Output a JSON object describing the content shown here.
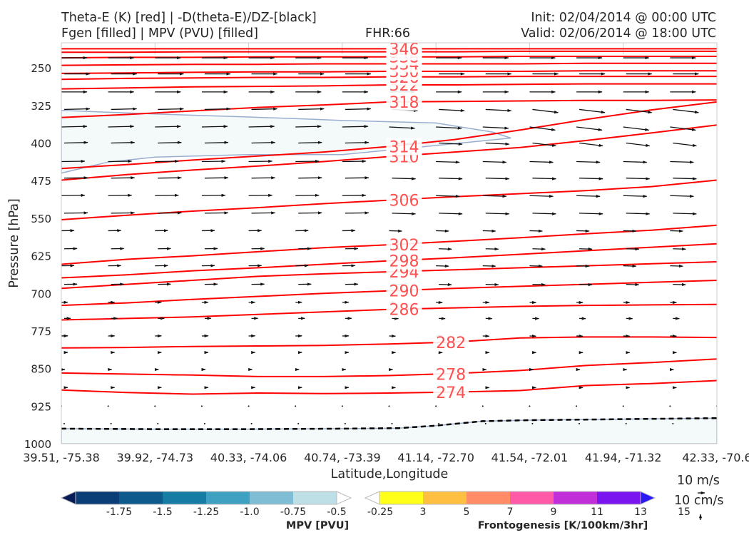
{
  "header": {
    "title_line1": "Theta-E (K) [red] | -D(theta-E)/DZ-[black]",
    "title_line2": "Fgen [filled] | MPV (PVU) [filled]",
    "fhr": "FHR:66",
    "init": "Init: 02/04/2014 @ 00:00 UTC",
    "valid": "Valid: 02/06/2014 @ 18:00 UTC"
  },
  "colors": {
    "theta_e": "#ff0000",
    "theta_e_label": "#ff5050",
    "wind": "#111111",
    "mpv_fill": "#f4f9fa",
    "mpv_edge": "#9aaed0",
    "ground": "#000000"
  },
  "chart_data": {
    "type": "line",
    "xlabel": "Latitude,Longitude",
    "ylabel": "Pressure [hPa]",
    "x_ticks": [
      "39.51, -75.38",
      "39.92, -74.73",
      "40.33, -74.06",
      "40.74, -73.39",
      "41.14, -72.70",
      "41.54, -72.01",
      "41.94, -71.32",
      "42.33, -70.6"
    ],
    "y_ticks": [
      250,
      325,
      400,
      475,
      550,
      625,
      700,
      775,
      850,
      925,
      1000
    ],
    "ylim": [
      1000,
      200
    ],
    "y_inverted": true,
    "x_positions": [
      0,
      1,
      2,
      3,
      4,
      5,
      6,
      7
    ],
    "theta_e_series": [
      {
        "label": "274",
        "values": [
          893,
          898,
          901,
          899,
          900,
          899,
          897,
          894,
          884,
          880,
          874
        ],
        "label_x": 4.0
      },
      {
        "label": "278",
        "values": [
          859,
          861,
          863,
          866,
          866,
          864,
          860,
          854,
          844,
          838,
          831
        ],
        "label_x": 4.0
      },
      {
        "label": "282",
        "values": [
          809,
          808,
          806,
          805,
          804,
          801,
          797,
          789,
          787,
          787,
          788
        ],
        "label_x": 4.0
      },
      {
        "label": "286",
        "values": [
          753,
          750,
          747,
          742,
          737,
          732,
          729,
          726,
          724,
          723,
          722
        ],
        "label_x": 3.5
      },
      {
        "label": "290",
        "values": [
          724,
          719,
          712,
          706,
          700,
          695,
          690,
          686,
          682,
          678,
          674
        ],
        "label_x": 3.5
      },
      {
        "label": "294",
        "values": [
          690,
          682,
          674,
          666,
          661,
          657,
          653,
          649,
          645,
          641,
          637
        ],
        "label_x": 3.5
      },
      {
        "label": "298",
        "values": [
          669,
          663,
          655,
          649,
          642,
          635,
          629,
          622,
          615,
          608,
          601
        ],
        "label_x": 3.5
      },
      {
        "label": "302",
        "values": [
          642,
          632,
          625,
          617,
          609,
          603,
          596,
          589,
          581,
          574,
          564
        ],
        "label_x": 3.5
      },
      {
        "label": "306",
        "values": [
          553,
          544,
          536,
          529,
          521,
          514,
          507,
          501,
          495,
          487,
          474
        ],
        "label_x": 3.5
      },
      {
        "label": "310",
        "values": [
          474,
          463,
          454,
          446,
          437,
          427,
          418,
          409,
          395,
          380,
          364
        ],
        "label_x": 3.5
      },
      {
        "label": "314",
        "values": [
          451,
          443,
          434,
          426,
          418,
          407,
          393,
          374,
          353,
          334,
          318
        ],
        "label_x": 3.5
      },
      {
        "label": "318",
        "values": [
          349,
          343,
          336,
          329,
          324,
          318,
          317,
          316,
          315,
          315,
          314
        ],
        "label_x": 3.5
      },
      {
        "label": "322",
        "values": [
          292,
          290,
          288,
          287,
          286,
          284,
          284,
          283,
          282,
          282,
          282
        ],
        "label_x": 3.5
      },
      {
        "label": "326",
        "values": [
          273,
          271,
          270,
          269,
          269,
          268,
          268,
          267,
          267,
          267,
          267
        ],
        "label_x": 3.5
      },
      {
        "label": "330",
        "values": [
          261,
          260,
          259,
          258,
          258,
          257,
          257,
          257,
          256,
          256,
          256
        ],
        "label_x": 3.5
      },
      {
        "label": "334",
        "values": [
          245,
          244,
          243,
          243,
          242,
          242,
          242,
          242,
          241,
          241,
          241
        ],
        "label_x": 3.5
      },
      {
        "label": "338",
        "values": [
          230,
          229,
          229,
          228,
          228,
          228,
          228,
          227,
          227,
          227,
          227
        ],
        "label_x": 3.5
      },
      {
        "label": "342",
        "values": [
          219,
          219,
          218,
          218,
          218,
          218,
          218,
          217,
          217,
          217,
          217
        ],
        "label_x": 3.5
      },
      {
        "label": "346",
        "values": [
          212,
          212,
          212,
          212,
          212,
          212,
          212,
          212,
          212,
          212,
          212
        ],
        "label_x": 3.5
      }
    ],
    "ground_line": {
      "x": [
        0,
        1,
        2,
        3,
        3.6,
        4,
        4.5,
        5,
        5.5,
        6,
        6.5,
        7
      ],
      "values": [
        970,
        971,
        971,
        970,
        969,
        964,
        955,
        953,
        952,
        951,
        950,
        949
      ]
    },
    "mpv_regions": [
      {
        "level": "-0.25",
        "x": [
          0,
          1.0,
          2.0,
          2.6,
          3.0,
          4.0,
          4.6,
          4.8,
          4.0,
          3.0,
          2.0,
          1.0,
          0.5,
          0
        ],
        "values": [
          335,
          342,
          348,
          352,
          355,
          360,
          378,
          390,
          405,
          423,
          423,
          428,
          438,
          460
        ]
      },
      {
        "level": "-0.25",
        "x": [
          0,
          1,
          2,
          3,
          3.6,
          4,
          4.5,
          5,
          5.5,
          6,
          6.5,
          7,
          7,
          0
        ],
        "values": [
          970,
          971,
          971,
          970,
          969,
          964,
          955,
          953,
          952,
          951,
          950,
          949,
          1000,
          1000
        ]
      }
    ],
    "wind_rows_hpa": [
      230,
      262,
      298,
      333,
      368,
      400,
      437,
      470,
      505,
      540,
      575,
      611,
      645,
      682,
      718,
      750,
      785,
      818,
      852,
      888,
      925,
      960
    ],
    "wind_cols": [
      0,
      0.5,
      1,
      1.5,
      2,
      2.5,
      3,
      3.5,
      4,
      4.5,
      5,
      5.5,
      6,
      6.5,
      7
    ],
    "scale_note": "10 m/s / 10 cm/s"
  },
  "colorbars": {
    "mpv": {
      "title": "MPV [PVU]",
      "labels": [
        "-1.75",
        "-1.5",
        "-1.25",
        "-1.0",
        "-0.75",
        "-0.5",
        "-0.25"
      ],
      "colors": [
        "#081d58",
        "#0b3d77",
        "#0e5a8c",
        "#167ca3",
        "#3fa1c1",
        "#7ebdd3",
        "#bfdfe7",
        "#ffffff"
      ]
    },
    "fgen": {
      "title": "Frontogenesis [K/100km/3hr]",
      "labels": [
        "3",
        "5",
        "7",
        "9",
        "11",
        "13",
        "15"
      ],
      "colors": [
        "#ffffff",
        "#ffff1a",
        "#ffbf40",
        "#ff8c66",
        "#ff5aa8",
        "#c12fd8",
        "#7a15f0",
        "#2a18f5"
      ]
    }
  },
  "scale": {
    "speed_label": "10 m/s",
    "vert_label": "10 cm/s"
  }
}
